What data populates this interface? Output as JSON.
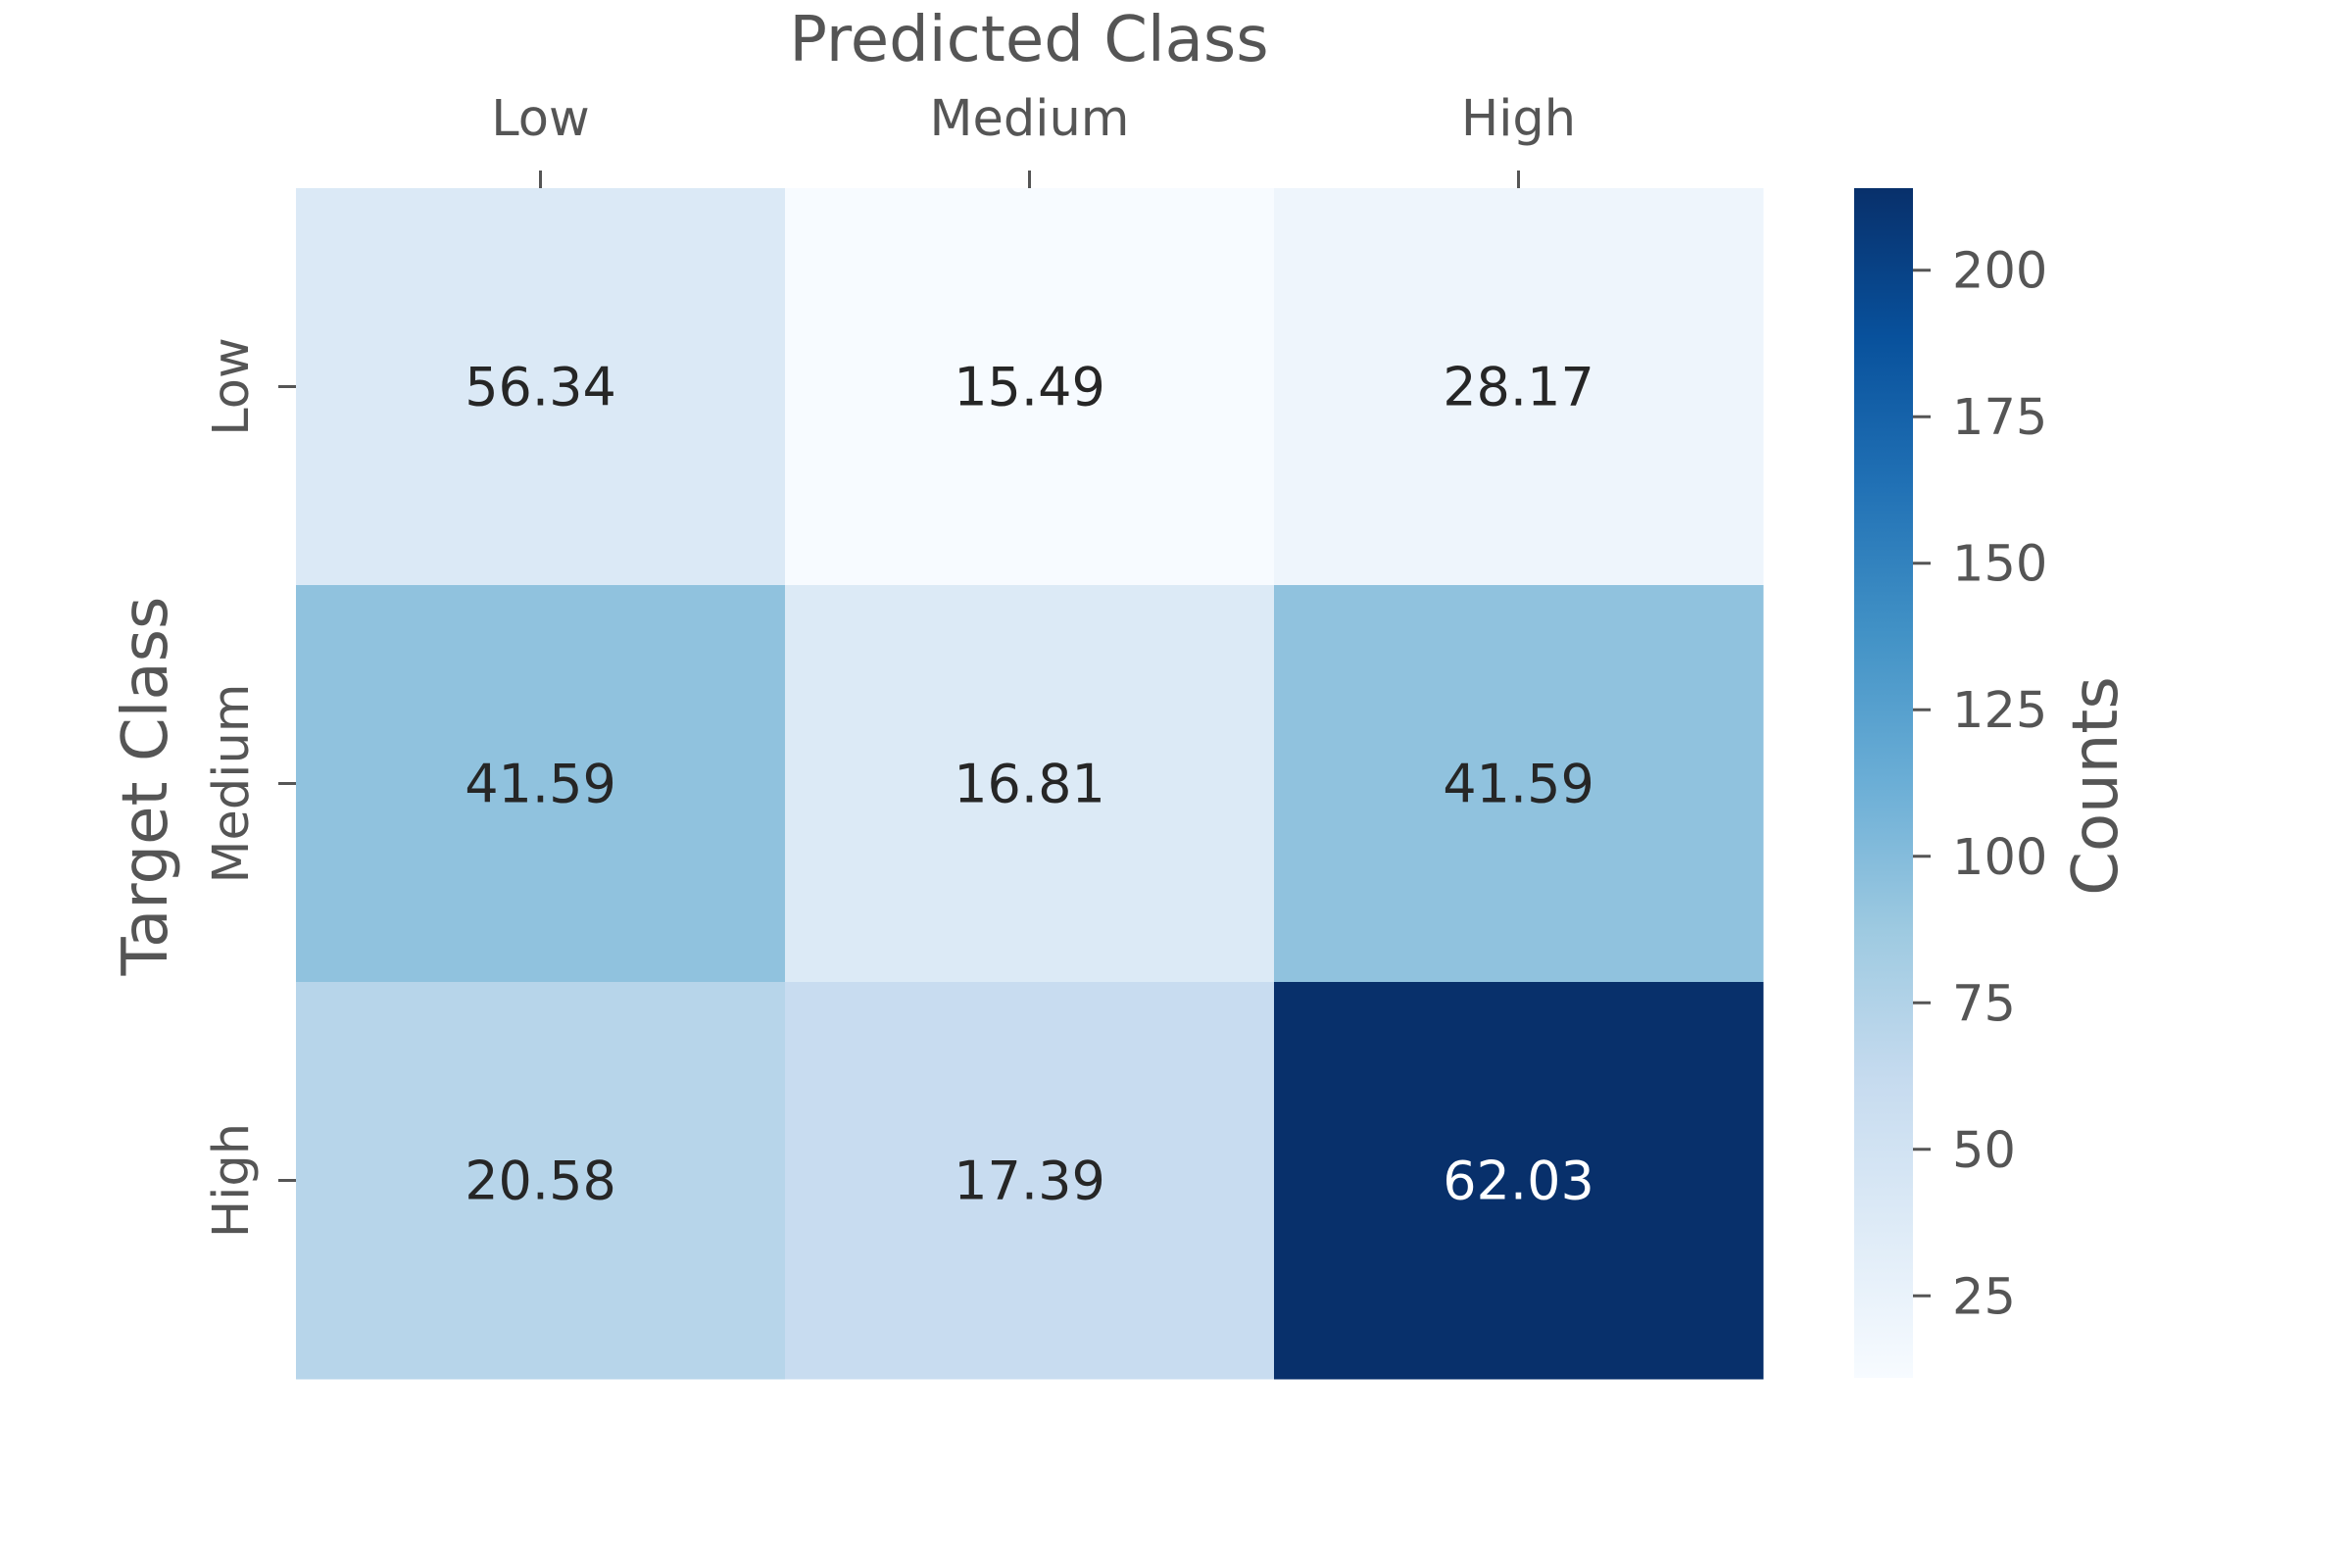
{
  "chart_data": {
    "type": "heatmap",
    "title": "",
    "xlabel": "Predicted Class",
    "ylabel": "Target Class",
    "x_categories": [
      "Low",
      "Medium",
      "High"
    ],
    "y_categories": [
      "Low",
      "Medium",
      "High"
    ],
    "values": [
      [
        56.34,
        15.49,
        28.17
      ],
      [
        41.59,
        16.81,
        41.59
      ],
      [
        20.58,
        17.39,
        62.03
      ]
    ],
    "cell_labels": [
      [
        "56.34",
        "15.49",
        "28.17"
      ],
      [
        "41.59",
        "16.81",
        "41.59"
      ],
      [
        "20.58",
        "17.39",
        "62.03"
      ]
    ],
    "cell_counts": [
      [
        40,
        11,
        20
      ],
      [
        94,
        38,
        94
      ],
      [
        71,
        60,
        214
      ]
    ],
    "colormap": "Blues",
    "colorbar": {
      "label": "Counts",
      "range": [
        11,
        214
      ],
      "ticks": [
        25,
        50,
        75,
        100,
        125,
        150,
        175,
        200
      ],
      "tick_labels": [
        "25",
        "50",
        "75",
        "100",
        "125",
        "150",
        "175",
        "200"
      ]
    },
    "x_axis_position": "top",
    "grid": false,
    "legend": "colorbar-right"
  }
}
